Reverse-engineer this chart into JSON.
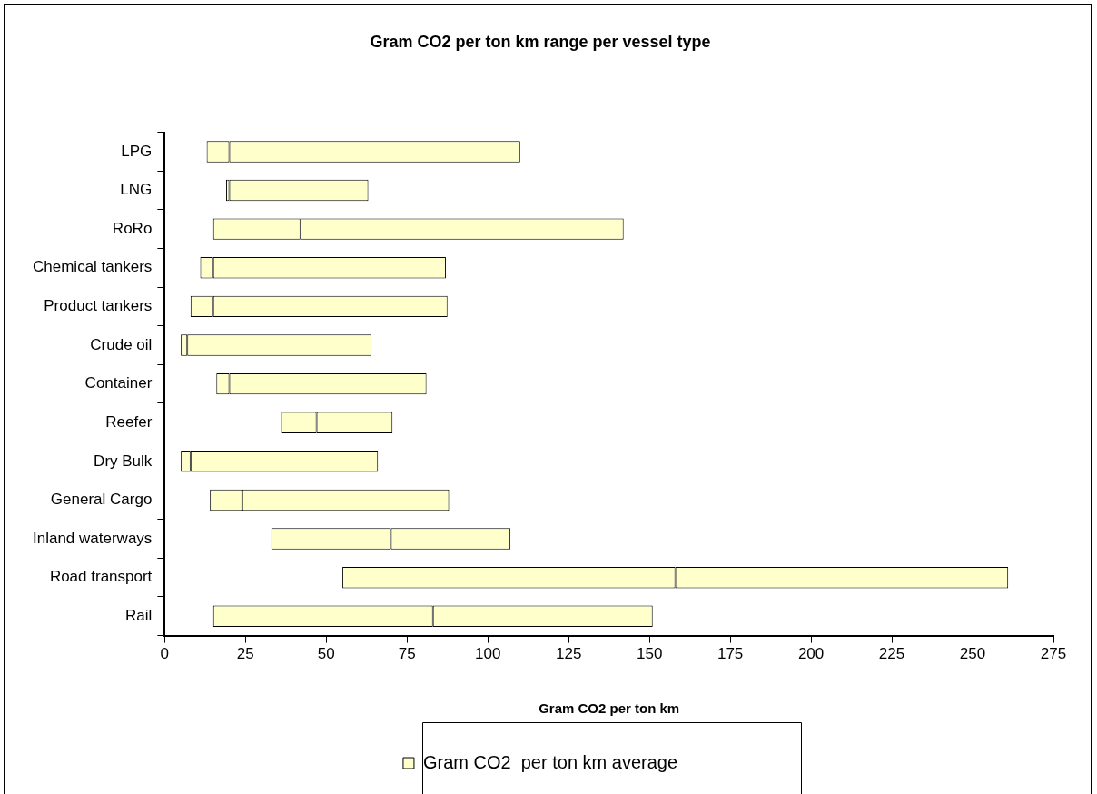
{
  "chart_data": {
    "type": "bar",
    "title": "Gram CO2 per ton km range per vessel type",
    "xlabel": "Gram CO2 per ton km",
    "orientation": "horizontal",
    "categories": [
      "LPG",
      "LNG",
      "RoRo",
      "Chemical tankers",
      "Product tankers",
      "Crude oil",
      "Container",
      "Reefer",
      "Dry Bulk",
      "General Cargo",
      "Inland waterways",
      "Road transport",
      "Rail"
    ],
    "series": [
      {
        "name": "Gram CO2  per ton km average",
        "color": "#ffffcc",
        "base": [
          13,
          19,
          15,
          11,
          8,
          5,
          16,
          36,
          5,
          14,
          33,
          55,
          15
        ],
        "values": [
          7,
          1,
          27,
          4,
          7,
          2,
          4,
          11,
          3,
          10,
          37,
          103,
          68
        ]
      },
      {
        "color": "#ffffcc",
        "base": [
          20,
          20,
          42,
          15,
          15,
          7,
          20,
          47,
          8,
          24,
          70,
          158,
          83
        ],
        "values": [
          90,
          43,
          100,
          72,
          72.5,
          57,
          61,
          23.5,
          58,
          64,
          37,
          103,
          68
        ]
      }
    ],
    "xlim": [
      0,
      275
    ],
    "xticks": [
      0,
      25,
      50,
      75,
      100,
      125,
      150,
      175,
      200,
      225,
      250,
      275
    ],
    "legend": "bottom"
  }
}
